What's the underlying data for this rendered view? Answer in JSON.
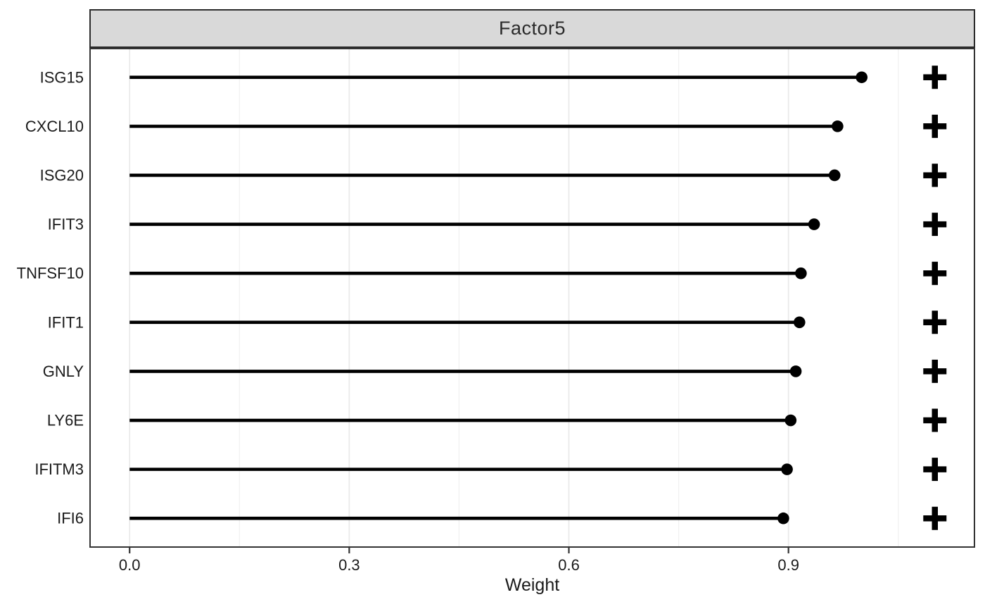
{
  "chart_data": {
    "type": "lollipop",
    "orientation": "horizontal",
    "title": "Factor5",
    "xlabel": "Weight",
    "ylabel": "",
    "categories": [
      "ISG15",
      "CXCL10",
      "ISG20",
      "IFIT3",
      "TNFSF10",
      "IFIT1",
      "GNLY",
      "LY6E",
      "IFITM3",
      "IFI6"
    ],
    "values": [
      1.0,
      0.967,
      0.963,
      0.935,
      0.917,
      0.915,
      0.91,
      0.903,
      0.898,
      0.893
    ],
    "signs": [
      "+",
      "+",
      "+",
      "+",
      "+",
      "+",
      "+",
      "+",
      "+",
      "+"
    ],
    "sign_marker_x": 1.1,
    "xlim": [
      -0.055,
      1.155
    ],
    "x_major_ticks": [
      0.0,
      0.3,
      0.6,
      0.9
    ],
    "x_tick_labels": [
      "0.0",
      "0.3",
      "0.6",
      "0.9"
    ],
    "x_minor_ticks": [
      0.15,
      0.45,
      0.75,
      1.05
    ],
    "grid": "vertical-only",
    "legend": "none",
    "colors": {
      "stem": "#000000",
      "point": "#000000",
      "sign": "#000000",
      "strip_fill": "#d9d9d9",
      "strip_border": "#2b2b2b",
      "panel_border": "#333333",
      "grid_major": "#e9e9e9",
      "grid_minor": "#f1f1f1",
      "axis_text": "#1a1a1a",
      "tick_mark": "#333333",
      "background": "#ffffff"
    }
  }
}
